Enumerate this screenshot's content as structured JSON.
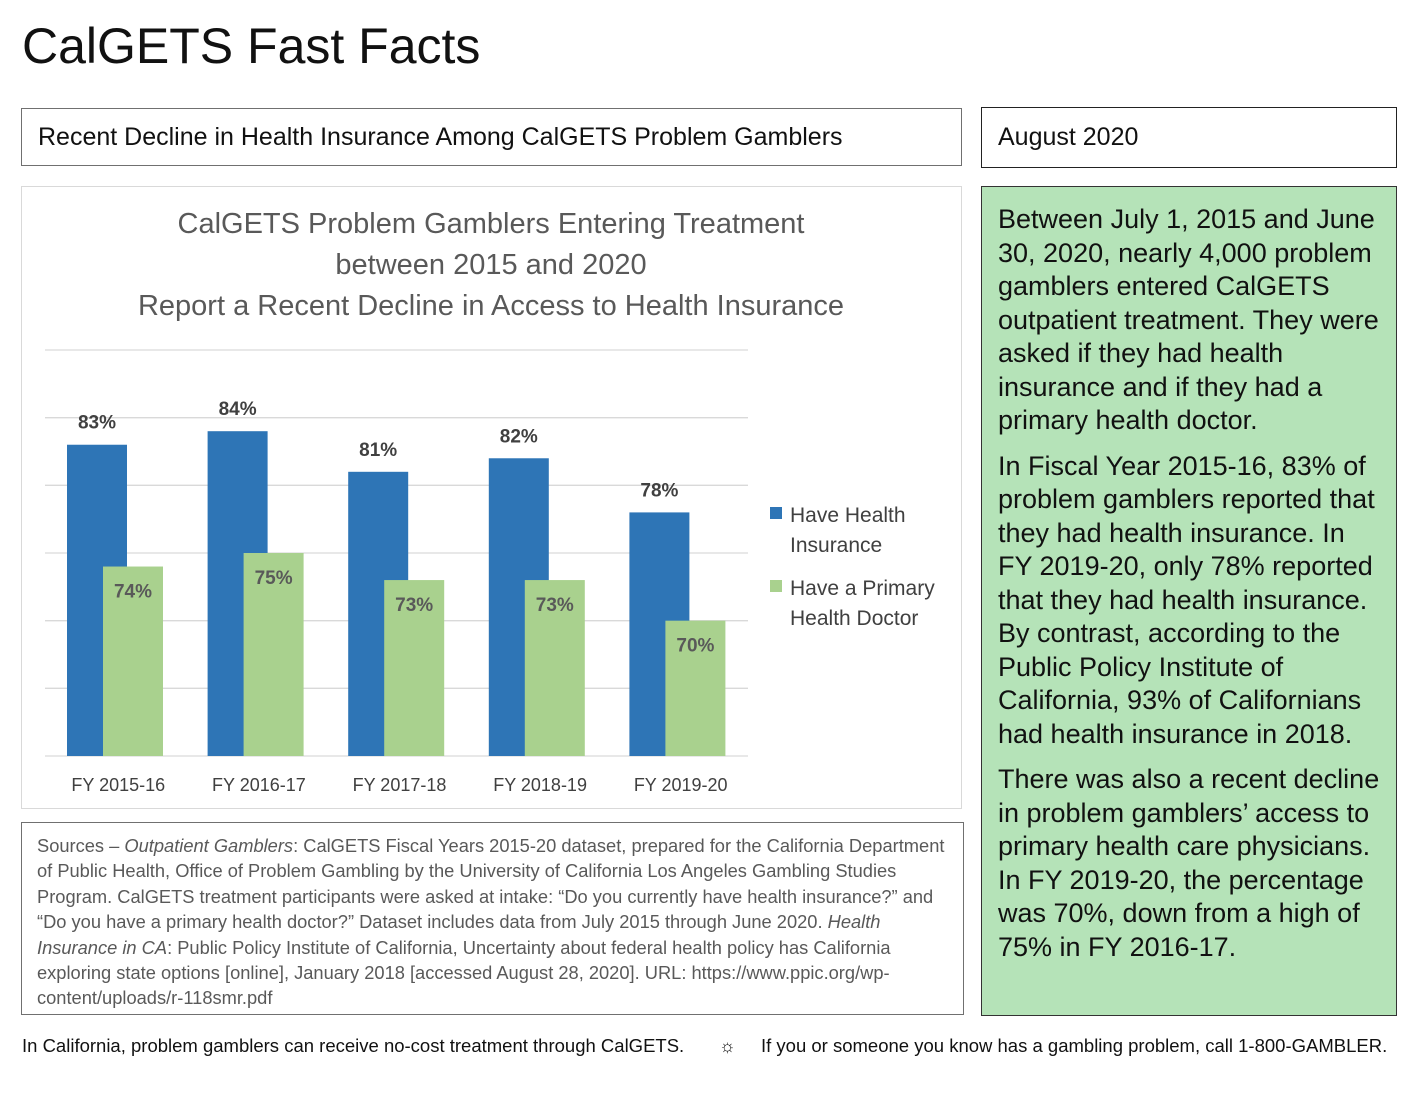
{
  "page_title": "CalGETS Fast Facts",
  "subtitle": "Recent Decline in Health Insurance Among CalGETS Problem Gamblers",
  "date": "August 2020",
  "colors": {
    "insurance": "#2e75b6",
    "doctor": "#a9d18e",
    "panel": "#b5e3b8",
    "gridline": "#d9d9d9",
    "chart_title": "#595959"
  },
  "chart_data": {
    "type": "bar",
    "title_lines": [
      "CalGETS Problem Gamblers Entering Treatment",
      "between 2015 and 2020",
      "Report a Recent Decline in Access to Health Insurance"
    ],
    "categories": [
      "FY 2015-16",
      "FY 2016-17",
      "FY 2017-18",
      "FY 2018-19",
      "FY 2019-20"
    ],
    "series": [
      {
        "name": "Have Health Insurance",
        "legend_lines": [
          "Have Health",
          "Insurance"
        ],
        "values": [
          83,
          84,
          81,
          82,
          78
        ],
        "labels": [
          "83%",
          "84%",
          "81%",
          "82%",
          "78%"
        ],
        "color": "#2e75b6",
        "label_color": "#404040"
      },
      {
        "name": "Have a Primary Health Doctor",
        "legend_lines": [
          "Have a Primary",
          "Health Doctor"
        ],
        "values": [
          74,
          75,
          73,
          73,
          70
        ],
        "labels": [
          "74%",
          "75%",
          "73%",
          "73%",
          "70%"
        ],
        "color": "#a9d18e",
        "label_color": "#595959"
      }
    ],
    "ylim": [
      60,
      90
    ],
    "y_axis_labels_shown": false,
    "grid": true,
    "legend_position": "right"
  },
  "panel_paragraphs": [
    "Between July 1, 2015 and June 30, 2020, nearly 4,000 problem gamblers entered CalGETS outpatient treatment. They were asked if they had health insurance and if they had a primary health doctor.",
    "In Fiscal Year 2015-16, 83% of problem gamblers reported that they had health insurance. In FY 2019-20, only 78% reported that they had health insurance. By contrast, according to the Public Policy Institute of California, 93% of Californians had health insurance in 2018.",
    "There was also a recent decline in problem gamblers’ access to primary health care physicians. In FY 2019-20, the percentage was 70%, down from a high of 75% in FY 2016-17."
  ],
  "sources": {
    "prefix": "Sources – ",
    "outpatient_title": "Outpatient Gamblers",
    "outpatient_text": ": CalGETS Fiscal Years 2015-20 dataset, prepared for the California Department of Public Health, Office of Problem Gambling by the University of California Los Angeles Gambling Studies Program. CalGETS treatment participants were asked at intake: “Do you currently have health insurance?” and “Do you have a primary health doctor?” Dataset includes data from July 2015 through June 2020.  ",
    "insurance_title": "Health Insurance in CA",
    "insurance_text": ": Public Policy Institute of California, Uncertainty about federal health policy has California exploring state options [online], January 2018 [accessed August 28, 2020]. URL: https://www.ppic.org/wp-content/uploads/r-118smr.pdf"
  },
  "footer": {
    "left": "In California, problem gamblers can receive no-cost treatment through CalGETS.",
    "separator": "☼",
    "right": "If you or someone you know has a gambling problem, call 1-800-GAMBLER."
  }
}
